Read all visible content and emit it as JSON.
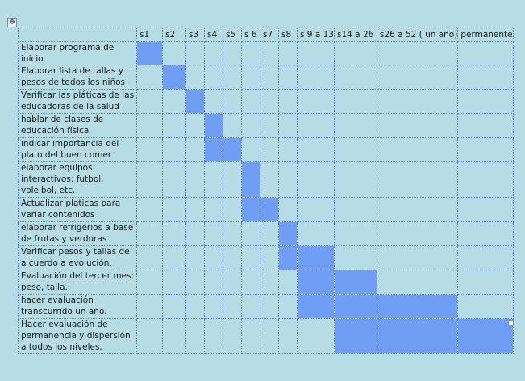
{
  "table": {
    "headers": [
      "",
      "s1",
      "s2",
      "s3",
      "s4",
      "s5",
      "s 6",
      "s7",
      "s8",
      "s 9 a 13",
      "s14 a 26",
      "s26 a 52 ( un año)",
      "permanente"
    ],
    "rows": [
      {
        "activity": "Elaborar programa de inicio",
        "weeks": [
          "s1"
        ]
      },
      {
        "activity": "Elaborar lista de tallas y pesos de todos los niños",
        "weeks": [
          "s2"
        ]
      },
      {
        "activity": "Verificar las pláticas de las educadoras de la salud",
        "weeks": [
          "s3"
        ]
      },
      {
        "activity": "hablar de clases de educación física",
        "weeks": [
          "s4"
        ]
      },
      {
        "activity": "indicar importancia del plato del buen comer",
        "weeks": [
          "s4",
          "s5"
        ]
      },
      {
        "activity": "elaborar equipos interactivos: futbol, voleibol, etc.",
        "weeks": [
          "s 6"
        ]
      },
      {
        "activity": "Actualizar platicas para variar contenidos",
        "weeks": [
          "s 6",
          "s7"
        ]
      },
      {
        "activity": "elaborar refrigerios a base de frutas y verduras",
        "weeks": [
          "s8"
        ]
      },
      {
        "activity": "Verificar pesos y tallas de a cuerdo a evolución.",
        "weeks": [
          "s8",
          "s 9 a 13"
        ]
      },
      {
        "activity": "Evaluación del tercer mes: peso, talla.",
        "weeks": [
          "s 9 a 13",
          "s14 a 26"
        ]
      },
      {
        "activity": "hacer evaluación transcurrido un año.",
        "weeks": [
          "s 9 a 13",
          "s14 a 26",
          "s26 a 52 ( un año)"
        ]
      },
      {
        "activity": "Hacer evaluación de permanencia y dispersión a todos los niveles.",
        "weeks": [
          "s14 a 26",
          "s26 a 52 ( un año)",
          "permanente"
        ]
      }
    ]
  },
  "colors": {
    "background": "#b6dce6",
    "filled_cell": "#6f9ef4",
    "grid": "#5b7fc9"
  },
  "icons": {
    "move_handle": "move-handle-icon",
    "resize_handle": "resize-handle-icon"
  }
}
